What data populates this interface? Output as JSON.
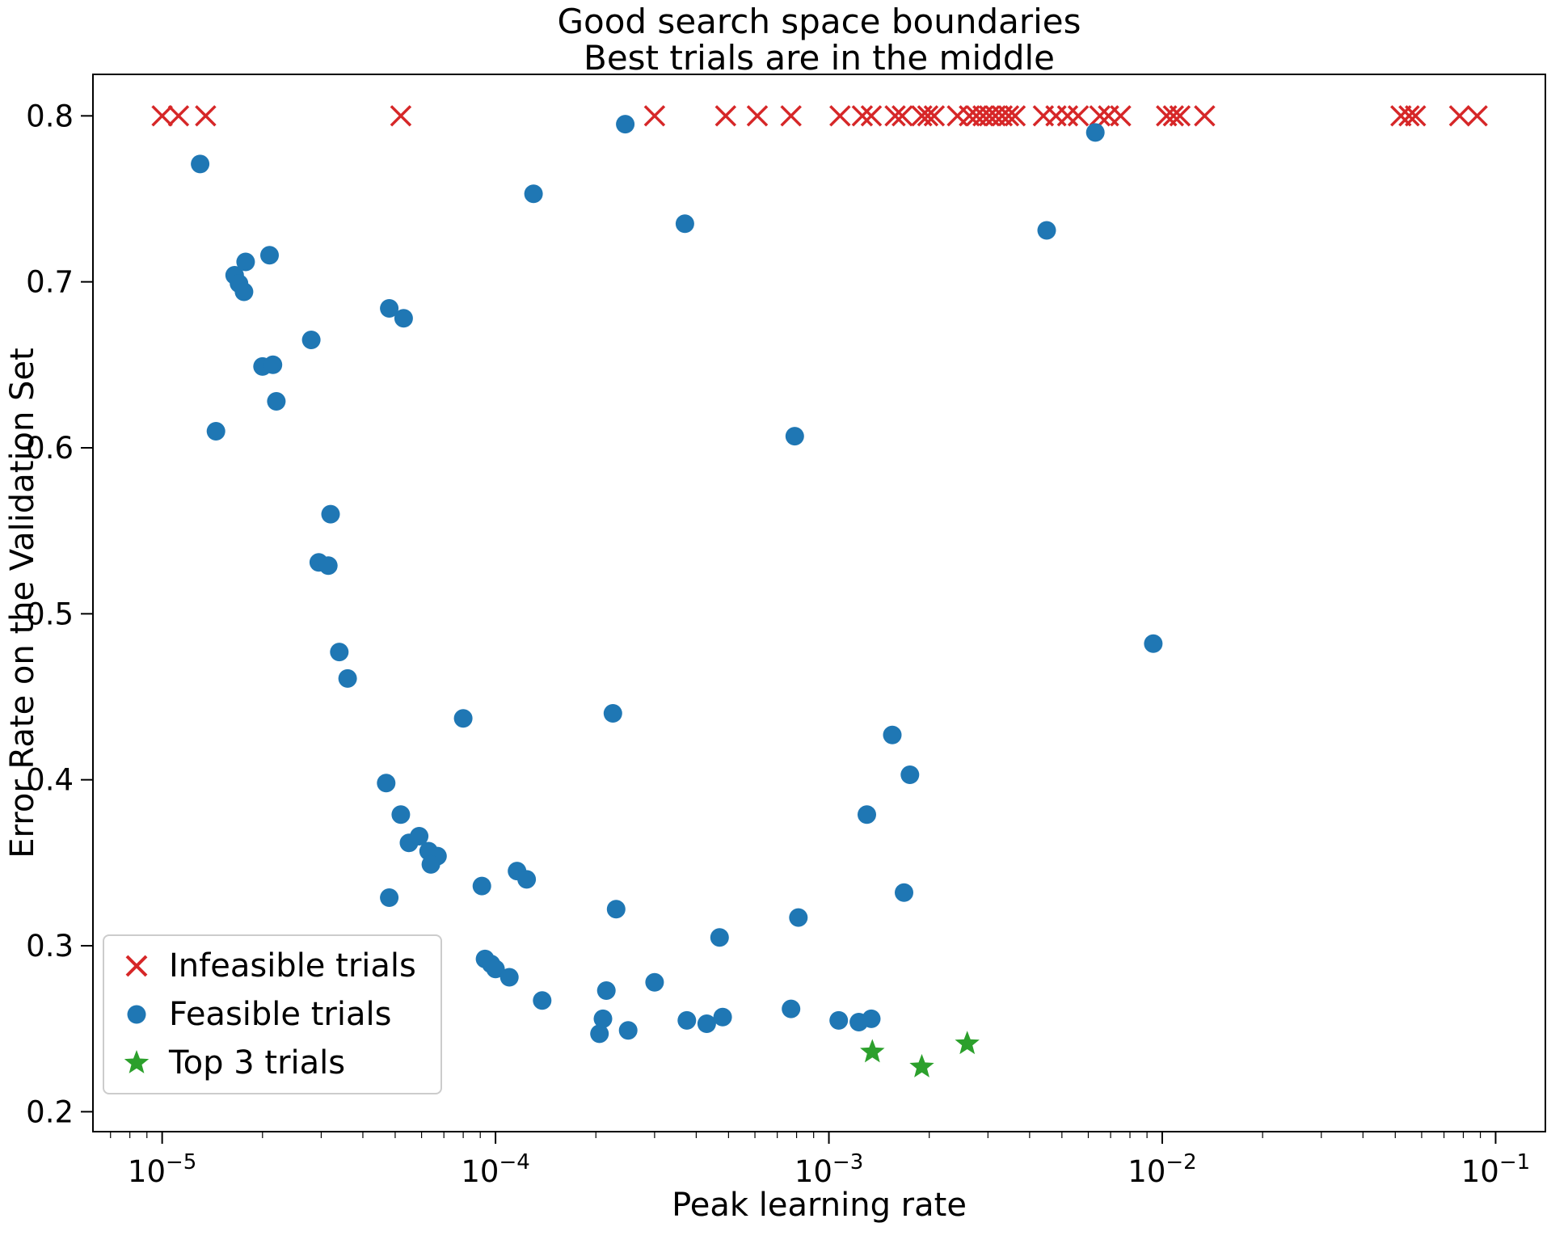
{
  "figure": {
    "background": "#ffffff"
  },
  "chart_data": {
    "type": "scatter",
    "title_line1": "Good search space boundaries",
    "title_line2": "Best trials are in the middle",
    "xlabel": "Peak learning rate",
    "ylabel": "Error Rate on the Validation Set",
    "x_scale": "log",
    "xlim": [
      6.2e-06,
      0.141
    ],
    "ylim": [
      0.188,
      0.825
    ],
    "grid": false,
    "y_ticks": [
      "0.2",
      "0.3",
      "0.4",
      "0.5",
      "0.6",
      "0.7",
      "0.8"
    ],
    "x_ticks": [
      {
        "value": 1e-05,
        "base": "10",
        "exponent": "−5"
      },
      {
        "value": 0.0001,
        "base": "10",
        "exponent": "−4"
      },
      {
        "value": 0.001,
        "base": "10",
        "exponent": "−3"
      },
      {
        "value": 0.01,
        "base": "10",
        "exponent": "−2"
      },
      {
        "value": 0.1,
        "base": "10",
        "exponent": "−1"
      }
    ],
    "legend": {
      "location": "lower left"
    },
    "series": [
      {
        "name": "Infeasible trials",
        "marker": "x",
        "color": "#d62728",
        "points": [
          [
            1e-05,
            0.8
          ],
          [
            1.12e-05,
            0.8
          ],
          [
            1.35e-05,
            0.8
          ],
          [
            5.2e-05,
            0.8
          ],
          [
            0.0003,
            0.8
          ],
          [
            0.00049,
            0.8
          ],
          [
            0.00061,
            0.8
          ],
          [
            0.00077,
            0.8
          ],
          [
            0.00108,
            0.8
          ],
          [
            0.00126,
            0.8
          ],
          [
            0.00134,
            0.8
          ],
          [
            0.00158,
            0.8
          ],
          [
            0.00166,
            0.8
          ],
          [
            0.0019,
            0.8
          ],
          [
            0.00198,
            0.8
          ],
          [
            0.00207,
            0.8
          ],
          [
            0.00243,
            0.8
          ],
          [
            0.00264,
            0.8
          ],
          [
            0.00277,
            0.8
          ],
          [
            0.0029,
            0.8
          ],
          [
            0.00303,
            0.8
          ],
          [
            0.00316,
            0.8
          ],
          [
            0.00331,
            0.8
          ],
          [
            0.00346,
            0.8
          ],
          [
            0.00362,
            0.8
          ],
          [
            0.0044,
            0.8
          ],
          [
            0.0048,
            0.8
          ],
          [
            0.0052,
            0.8
          ],
          [
            0.0056,
            0.8
          ],
          [
            0.0065,
            0.8
          ],
          [
            0.0069,
            0.8
          ],
          [
            0.0075,
            0.8
          ],
          [
            0.0103,
            0.8
          ],
          [
            0.0108,
            0.8
          ],
          [
            0.0113,
            0.8
          ],
          [
            0.0134,
            0.8
          ],
          [
            0.052,
            0.8
          ],
          [
            0.055,
            0.8
          ],
          [
            0.0575,
            0.8
          ],
          [
            0.078,
            0.8
          ],
          [
            0.088,
            0.8
          ]
        ]
      },
      {
        "name": "Feasible trials",
        "marker": "circle",
        "color": "#1f77b4",
        "points": [
          [
            1.3e-05,
            0.771
          ],
          [
            1.45e-05,
            0.61
          ],
          [
            1.65e-05,
            0.704
          ],
          [
            1.7e-05,
            0.699
          ],
          [
            1.78e-05,
            0.712
          ],
          [
            1.76e-05,
            0.694
          ],
          [
            2.1e-05,
            0.716
          ],
          [
            2e-05,
            0.649
          ],
          [
            2.15e-05,
            0.65
          ],
          [
            2.2e-05,
            0.628
          ],
          [
            2.8e-05,
            0.665
          ],
          [
            3.2e-05,
            0.56
          ],
          [
            2.95e-05,
            0.531
          ],
          [
            3.15e-05,
            0.529
          ],
          [
            3.4e-05,
            0.477
          ],
          [
            3.6e-05,
            0.461
          ],
          [
            4.8e-05,
            0.684
          ],
          [
            5.3e-05,
            0.678
          ],
          [
            4.7e-05,
            0.398
          ],
          [
            5.2e-05,
            0.379
          ],
          [
            5.5e-05,
            0.362
          ],
          [
            5.9e-05,
            0.366
          ],
          [
            6.3e-05,
            0.357
          ],
          [
            6.7e-05,
            0.354
          ],
          [
            6.4e-05,
            0.349
          ],
          [
            4.8e-05,
            0.329
          ],
          [
            8e-05,
            0.437
          ],
          [
            9.1e-05,
            0.336
          ],
          [
            0.000116,
            0.345
          ],
          [
            0.000124,
            0.34
          ],
          [
            9.3e-05,
            0.292
          ],
          [
            9.7e-05,
            0.289
          ],
          [
            0.0001,
            0.286
          ],
          [
            0.00011,
            0.281
          ],
          [
            0.000138,
            0.267
          ],
          [
            0.00013,
            0.753
          ],
          [
            0.000205,
            0.247
          ],
          [
            0.00021,
            0.256
          ],
          [
            0.000215,
            0.273
          ],
          [
            0.00025,
            0.249
          ],
          [
            0.00023,
            0.322
          ],
          [
            0.000225,
            0.44
          ],
          [
            0.000245,
            0.795
          ],
          [
            0.0003,
            0.278
          ],
          [
            0.00037,
            0.735
          ],
          [
            0.000375,
            0.255
          ],
          [
            0.00043,
            0.253
          ],
          [
            0.00048,
            0.257
          ],
          [
            0.00047,
            0.305
          ],
          [
            0.00079,
            0.607
          ],
          [
            0.00077,
            0.262
          ],
          [
            0.00081,
            0.317
          ],
          [
            0.00107,
            0.255
          ],
          [
            0.00123,
            0.254
          ],
          [
            0.00134,
            0.256
          ],
          [
            0.0013,
            0.379
          ],
          [
            0.00155,
            0.427
          ],
          [
            0.00175,
            0.403
          ],
          [
            0.00168,
            0.332
          ],
          [
            0.0045,
            0.731
          ],
          [
            0.0063,
            0.79
          ],
          [
            0.0094,
            0.482
          ]
        ]
      },
      {
        "name": "Top 3 trials",
        "marker": "star",
        "color": "#2ca02c",
        "points": [
          [
            0.00135,
            0.236
          ],
          [
            0.0019,
            0.227
          ],
          [
            0.0026,
            0.241
          ]
        ]
      }
    ]
  }
}
